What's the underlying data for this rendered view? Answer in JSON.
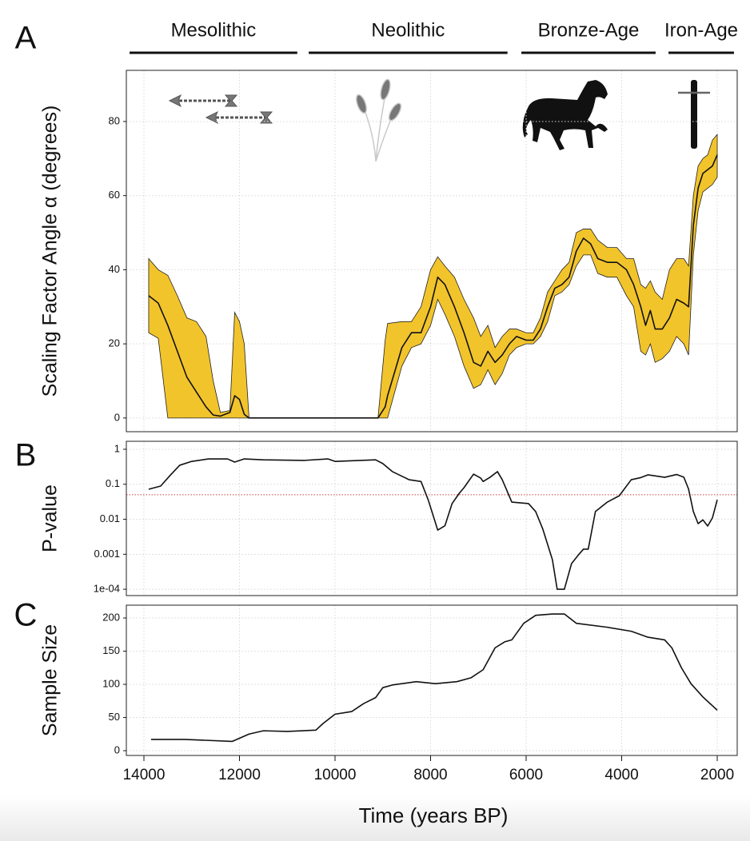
{
  "chart_data": [
    {
      "type": "band",
      "label": "A",
      "ylabel": "Scaling Factor Angle α (degrees)",
      "xlim": [
        14368,
        1582
      ],
      "xticks": [
        14000,
        12000,
        10000,
        8000,
        6000,
        4000,
        2000
      ],
      "ylim": [
        -3.7,
        93.8
      ],
      "yticks": [
        0,
        20,
        40,
        60,
        80
      ],
      "grid": true,
      "periods": [
        {
          "name": "Mesolithic",
          "start": 14300,
          "end": 10790
        },
        {
          "name": "Neolithic",
          "start": 10550,
          "end": 6390
        },
        {
          "name": "Bronze-Age",
          "start": 6100,
          "end": 3290
        },
        {
          "name": "Iron-Age",
          "start": 3020,
          "end": 1650
        }
      ],
      "x": [
        13900,
        13700,
        13500,
        13300,
        13100,
        12900,
        12700,
        12550,
        12400,
        12200,
        12100,
        12000,
        11900,
        11800,
        9100,
        8950,
        8900,
        8600,
        8400,
        8200,
        8000,
        7850,
        7700,
        7500,
        7300,
        7100,
        6950,
        6800,
        6650,
        6500,
        6350,
        6200,
        6000,
        5850,
        5700,
        5550,
        5400,
        5250,
        5100,
        4950,
        4800,
        4650,
        4500,
        4300,
        4100,
        3900,
        3750,
        3600,
        3500,
        3400,
        3300,
        3150,
        3000,
        2850,
        2700,
        2600,
        2500,
        2400,
        2300,
        2200,
        2100,
        2000
      ],
      "band": {
        "color": "#f2c42c",
        "lower": [
          23,
          21.5,
          0,
          0,
          0,
          0,
          0,
          0,
          0,
          0,
          0,
          0,
          0,
          0,
          0,
          0,
          0,
          14,
          19,
          20,
          25,
          32,
          28,
          22,
          14,
          8,
          9,
          13,
          9,
          12,
          17,
          19,
          20,
          20,
          22,
          26,
          33,
          34,
          36,
          41,
          44,
          44,
          39,
          38,
          38,
          33,
          30,
          18,
          17,
          20,
          15,
          16,
          18,
          22,
          20,
          17,
          44,
          56,
          61,
          62,
          63,
          65
        ],
        "upper": [
          43,
          40,
          38.5,
          33,
          27,
          26,
          22,
          10,
          1.5,
          2,
          28.5,
          26,
          20,
          0,
          0,
          21,
          25.5,
          26,
          26,
          30,
          40,
          43.5,
          41,
          38,
          32,
          27,
          22,
          25,
          19,
          22,
          24,
          24,
          23,
          23,
          27,
          34,
          37,
          40,
          42,
          50,
          51,
          51,
          48,
          46,
          46,
          43,
          43,
          36,
          35,
          37,
          34,
          32,
          40,
          43,
          43,
          41,
          60,
          68,
          70,
          71,
          75,
          76.5
        ]
      },
      "series": [
        {
          "color": "#111111",
          "values": [
            33,
            31,
            25,
            18,
            11,
            7,
            3,
            0.8,
            0.5,
            1.5,
            6,
            5,
            1,
            0,
            0,
            3,
            6,
            19,
            23,
            23,
            30,
            38,
            36,
            30,
            23,
            15,
            14,
            18,
            15,
            17,
            20,
            22,
            21,
            21,
            24,
            30,
            35,
            36,
            38,
            45,
            48.5,
            47,
            43,
            42,
            42,
            40,
            36,
            30,
            25,
            29,
            24,
            24,
            27,
            32,
            31,
            30,
            52,
            62,
            66,
            67,
            68,
            71
          ]
        }
      ]
    },
    {
      "type": "line",
      "label": "B",
      "ylabel": "P-value",
      "log_y": true,
      "xlim": [
        14368,
        1582
      ],
      "xticks": [
        14000,
        12000,
        10000,
        8000,
        6000,
        4000,
        2000
      ],
      "ylim": [
        6.6e-05,
        1.69
      ],
      "yticks": [
        1,
        0.1,
        0.01,
        0.001,
        {
          "value": 0.0001,
          "label": "1e-04"
        }
      ],
      "grid": true,
      "hline": {
        "value": 0.05,
        "color": "#d04040"
      },
      "x": [
        13900,
        13650,
        13450,
        13250,
        13000,
        12650,
        12250,
        12100,
        11900,
        11500,
        10650,
        10150,
        10000,
        9150,
        9000,
        8800,
        8450,
        8200,
        8050,
        7850,
        7700,
        7550,
        7400,
        7300,
        7100,
        6950,
        6900,
        6750,
        6600,
        6500,
        6300,
        5950,
        5800,
        5650,
        5450,
        5350,
        5200,
        5050,
        4900,
        4800,
        4700,
        4550,
        4300,
        4050,
        3800,
        3600,
        3450,
        3100,
        2850,
        2700,
        2600,
        2500,
        2400,
        2300,
        2200,
        2100,
        2000
      ],
      "series": [
        {
          "color": "#111111",
          "values": [
            0.072,
            0.089,
            0.18,
            0.35,
            0.45,
            0.53,
            0.53,
            0.43,
            0.53,
            0.5,
            0.48,
            0.53,
            0.45,
            0.5,
            0.39,
            0.23,
            0.135,
            0.12,
            0.036,
            0.0049,
            0.0065,
            0.028,
            0.055,
            0.08,
            0.195,
            0.15,
            0.12,
            0.16,
            0.23,
            0.135,
            0.031,
            0.028,
            0.0166,
            0.0052,
            0.0007,
            0.0001,
            0.0001,
            0.00054,
            0.00098,
            0.0014,
            0.0014,
            0.0166,
            0.031,
            0.047,
            0.135,
            0.155,
            0.186,
            0.158,
            0.19,
            0.16,
            0.073,
            0.0166,
            0.0075,
            0.0096,
            0.0064,
            0.011,
            0.036
          ]
        }
      ]
    },
    {
      "type": "line",
      "label": "C",
      "ylabel": "Sample Size",
      "xlabel": "Time (years BP)",
      "x_tick_labels": true,
      "xlim": [
        14368,
        1582
      ],
      "xticks": [
        14000,
        12000,
        10000,
        8000,
        6000,
        4000,
        2000
      ],
      "ylim": [
        -7.2,
        219.3
      ],
      "yticks": [
        0,
        50,
        100,
        150,
        200
      ],
      "grid": true,
      "x": [
        13850,
        13150,
        12150,
        11800,
        11500,
        11000,
        10400,
        10250,
        10000,
        9650,
        9400,
        9150,
        9000,
        8800,
        8300,
        7900,
        7450,
        7150,
        6900,
        6650,
        6450,
        6300,
        6050,
        5800,
        5450,
        5200,
        4950,
        4300,
        3800,
        3450,
        3100,
        2950,
        2750,
        2550,
        2300,
        2000
      ],
      "series": [
        {
          "color": "#111111",
          "values": [
            17,
            17,
            14,
            25,
            30,
            29,
            31,
            41,
            55,
            59,
            71,
            80,
            95,
            99,
            104,
            101,
            104,
            110,
            122,
            155,
            164,
            167,
            192,
            204,
            206,
            206,
            192,
            186,
            180,
            171,
            167,
            155,
            125,
            101,
            81,
            61
          ]
        }
      ]
    }
  ]
}
